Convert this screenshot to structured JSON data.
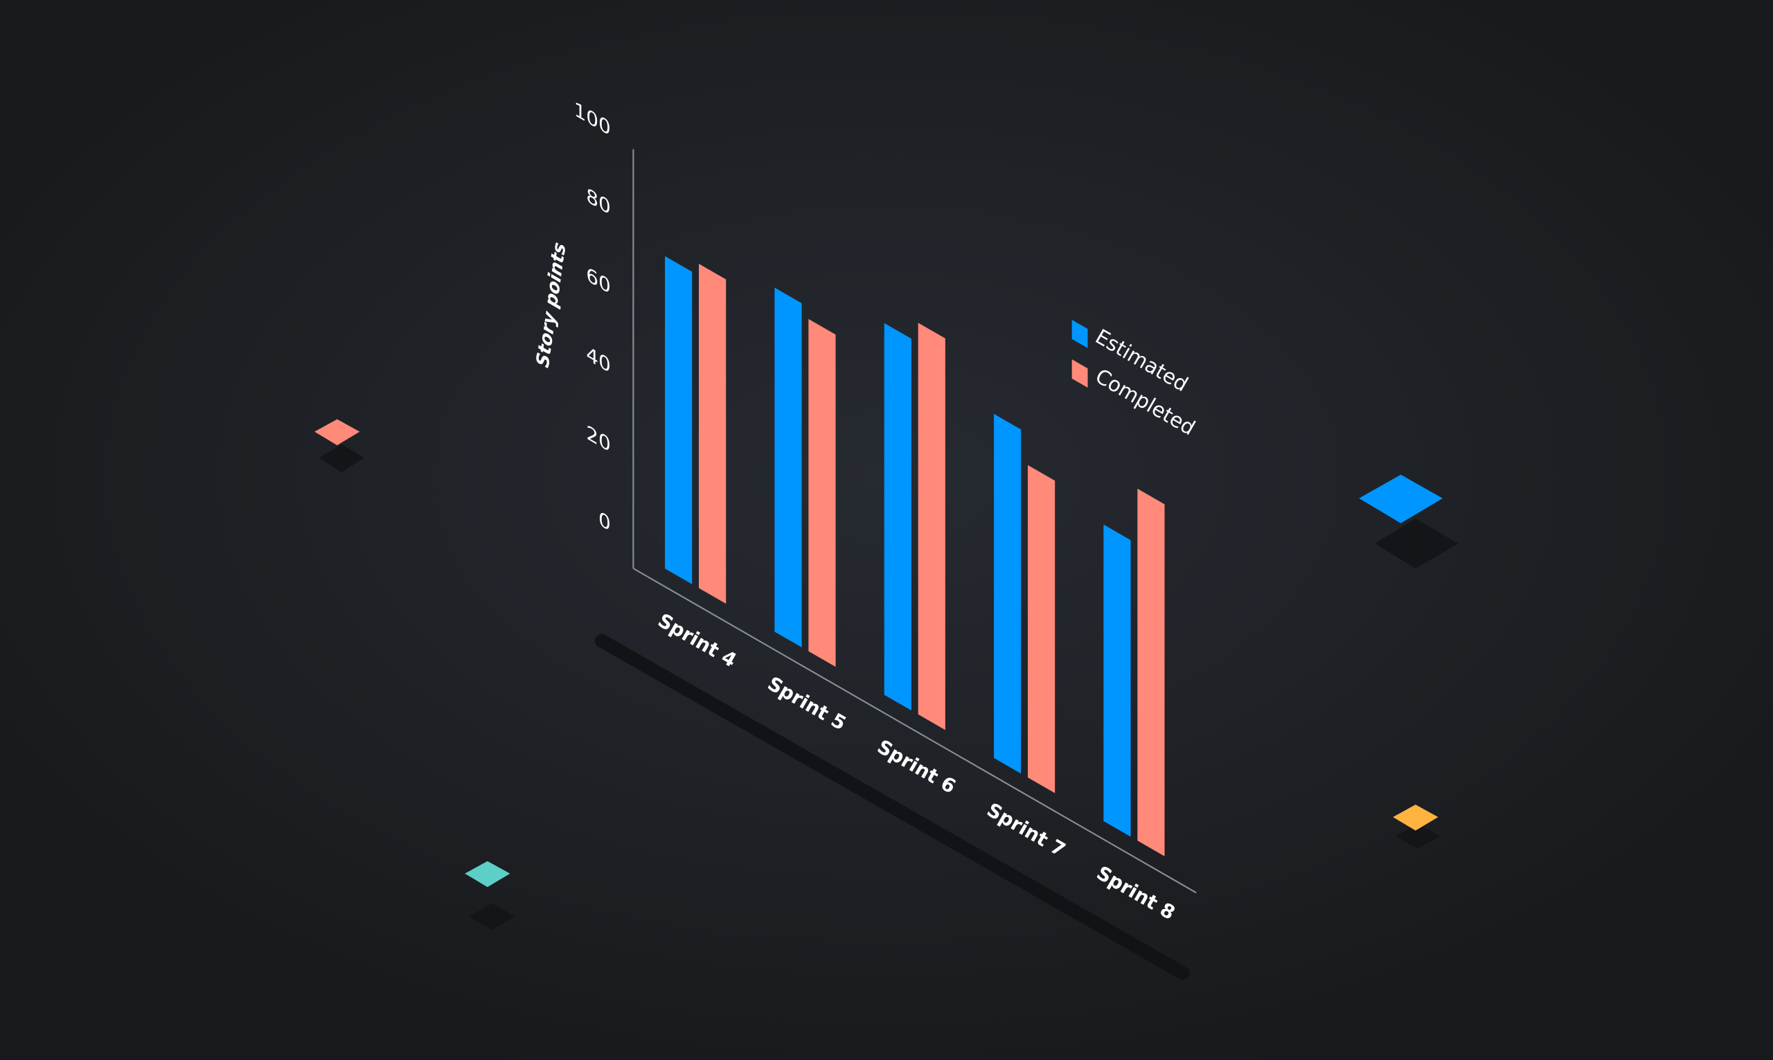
{
  "chart_data": {
    "type": "bar",
    "y_label": "Story points",
    "categories": [
      "Sprint 4",
      "Sprint 5",
      "Sprint 6",
      "Sprint 7",
      "Sprint 8"
    ],
    "series": [
      {
        "name": "Estimated",
        "color": "#0096ff",
        "values": [
          79,
          87,
          94,
          87,
          75
        ]
      },
      {
        "name": "Completed",
        "color": "#ff8a7a",
        "values": [
          82,
          84,
          99,
          79,
          89
        ]
      }
    ],
    "ylim": [
      0,
      100
    ],
    "yticks": [
      0,
      20,
      40,
      60,
      80,
      100
    ]
  }
}
